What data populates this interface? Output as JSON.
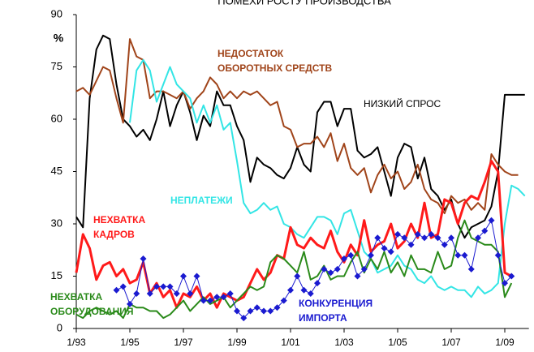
{
  "chart_data": {
    "type": "line",
    "title": "ПОМЕХИ РОСТУ ПРОИЗВОДСТВА",
    "ylabel": "%",
    "x": [
      1993,
      1993.25,
      1993.5,
      1993.75,
      1994,
      1994.25,
      1994.5,
      1994.75,
      1995,
      1995.25,
      1995.5,
      1995.75,
      1996,
      1996.25,
      1996.5,
      1996.75,
      1997,
      1997.25,
      1997.5,
      1997.75,
      1998,
      1998.25,
      1998.5,
      1998.75,
      1999,
      1999.25,
      1999.5,
      1999.75,
      2000,
      2000.25,
      2000.5,
      2000.75,
      2001,
      2001.25,
      2001.5,
      2001.75,
      2002,
      2002.25,
      2002.5,
      2002.75,
      2003,
      2003.25,
      2003.5,
      2003.75,
      2004,
      2004.25,
      2004.5,
      2004.75,
      2005,
      2005.25,
      2005.5,
      2005.75,
      2006,
      2006.25,
      2006.5,
      2006.75,
      2007,
      2007.25,
      2007.5,
      2007.75,
      2008,
      2008.25,
      2008.5,
      2008.75,
      2009,
      2009.25,
      2009.5,
      2009.75
    ],
    "series": [
      {
        "name": "НИЗКИЙ СПРОС",
        "color": "#000000",
        "width": 2,
        "values": [
          32,
          29,
          66,
          80,
          84,
          83,
          70,
          60,
          58,
          55,
          57,
          54,
          60,
          68,
          58,
          64,
          68,
          62,
          54,
          61,
          58,
          68,
          64,
          64,
          58,
          54,
          42,
          49,
          47,
          46,
          44,
          43,
          46,
          52,
          47,
          45,
          62,
          65,
          65,
          58,
          63,
          63,
          51,
          49,
          50,
          52,
          45,
          38,
          49,
          53,
          52,
          43,
          49,
          40,
          38,
          34,
          37,
          30,
          26,
          29,
          30,
          31,
          35,
          45,
          67,
          67,
          67,
          67
        ]
      },
      {
        "name": "НЕДОСТАТОК\nОБОРОТНЫХ СРЕДСТВ",
        "color": "#a0441a",
        "width": 2,
        "values": [
          68,
          69,
          67,
          71,
          75,
          74,
          66,
          59,
          83,
          78,
          77,
          66,
          68,
          68,
          67,
          66,
          68,
          63,
          66,
          68,
          72,
          70,
          66,
          68,
          66,
          68,
          67,
          68,
          66,
          64,
          65,
          58,
          57,
          52,
          53,
          53,
          55,
          52,
          56,
          48,
          53,
          46,
          44,
          46,
          39,
          44,
          47,
          43,
          45,
          40,
          42,
          47,
          40,
          37,
          36,
          33,
          38,
          36,
          37,
          34,
          36,
          34,
          50,
          47,
          45,
          44,
          44,
          null
        ]
      },
      {
        "name": "НЕПЛАТЕЖИ",
        "color": "#33e5e5",
        "width": 2,
        "values": [
          null,
          null,
          null,
          null,
          null,
          null,
          null,
          null,
          59,
          74,
          77,
          74,
          65,
          70,
          75,
          70,
          68,
          66,
          59,
          64,
          59,
          64,
          57,
          59,
          48,
          36,
          33,
          34,
          36,
          34,
          35,
          30,
          29,
          27,
          26,
          29,
          32,
          32,
          31,
          27,
          33,
          34,
          28,
          22,
          20,
          16,
          17,
          18,
          21,
          18,
          17,
          14,
          13,
          15,
          12,
          11,
          12,
          11,
          11,
          9,
          12,
          10,
          11,
          13,
          30,
          41,
          40,
          38
        ]
      },
      {
        "name": "НЕХВАТКА\nКАДРОВ",
        "color": "#ff1a1a",
        "width": 3,
        "values": [
          16,
          27,
          23,
          14,
          18,
          19,
          15,
          17,
          13,
          14,
          19,
          10,
          13,
          9,
          11,
          6,
          10,
          9,
          12,
          8,
          10,
          6,
          10,
          9,
          8,
          9,
          13,
          17,
          14,
          16,
          21,
          20,
          29,
          24,
          23,
          26,
          24,
          23,
          28,
          22,
          19,
          24,
          21,
          31,
          22,
          24,
          25,
          30,
          23,
          25,
          30,
          26,
          36,
          26,
          27,
          37,
          36,
          30,
          36,
          38,
          37,
          42,
          48,
          45,
          16,
          15,
          null,
          null
        ]
      },
      {
        "name": "НЕХВАТКА\nОБОРУДОВАНИЯ",
        "color": "#2a8a1a",
        "width": 2,
        "values": [
          4,
          3,
          5,
          6,
          5,
          4,
          5,
          3,
          7,
          6,
          6,
          5,
          5,
          3,
          4,
          6,
          8,
          5,
          7,
          9,
          7,
          8,
          9,
          6,
          8,
          10,
          12,
          11,
          12,
          19,
          21,
          20,
          18,
          16,
          22,
          14,
          15,
          18,
          14,
          15,
          15,
          19,
          22,
          16,
          20,
          17,
          22,
          16,
          19,
          15,
          21,
          17,
          17,
          16,
          22,
          17,
          18,
          26,
          31,
          26,
          25,
          24,
          24,
          22,
          9,
          13,
          null,
          null
        ]
      },
      {
        "name": "КОНКУРЕНЦИЯ\nИМПОРТА",
        "color": "#1a1ad0",
        "width": 1,
        "marker": "diamond",
        "values": [
          null,
          null,
          null,
          null,
          null,
          null,
          11,
          12,
          7,
          10,
          20,
          10,
          12,
          12,
          12,
          10,
          15,
          10,
          15,
          8,
          8,
          9,
          9,
          10,
          5,
          3,
          5,
          6,
          5,
          5,
          6,
          8,
          11,
          15,
          11,
          10,
          13,
          17,
          16,
          17,
          20,
          21,
          15,
          17,
          21,
          26,
          23,
          22,
          27,
          26,
          24,
          27,
          26,
          27,
          26,
          24,
          26,
          21,
          21,
          17,
          26,
          28,
          31,
          21,
          13,
          15,
          null,
          null
        ]
      }
    ],
    "xlim": [
      1992.9,
      2009.9
    ],
    "ylim": [
      0,
      90
    ],
    "yticks": [
      0,
      15,
      30,
      45,
      60,
      75,
      90
    ],
    "xticks": [
      {
        "value": 1993,
        "label": "1/93"
      },
      {
        "value": 1995,
        "label": "1/95"
      },
      {
        "value": 1997,
        "label": "1/97"
      },
      {
        "value": 1999,
        "label": "1/99"
      },
      {
        "value": 2001,
        "label": "1/01"
      },
      {
        "value": 2003,
        "label": "1/03"
      },
      {
        "value": 2005,
        "label": "1/05"
      },
      {
        "value": 2007,
        "label": "1/07"
      },
      {
        "value": 2009,
        "label": "1/09"
      }
    ]
  }
}
